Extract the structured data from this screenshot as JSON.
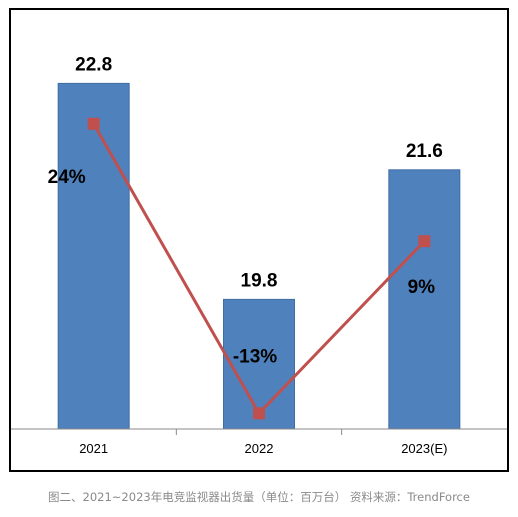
{
  "caption": "图二、2021~2023年电竞监视器出货量（单位：百万台） 资料来源：TrendForce",
  "chart_data": {
    "type": "bar",
    "categories": [
      "2021",
      "2022",
      "2023(E)"
    ],
    "series": [
      {
        "type": "bar",
        "values": [
          22.8,
          19.8,
          21.6
        ],
        "data_labels": [
          "22.8",
          "19.8",
          "21.6"
        ],
        "color": "#4F81BD"
      },
      {
        "type": "line",
        "values": [
          24,
          -13,
          9
        ],
        "unit": "%",
        "data_labels": [
          "24%",
          "-13%",
          "9%"
        ],
        "color": "#C0504D",
        "marker": "square"
      }
    ],
    "title": "",
    "xlabel": "",
    "ylabel": "",
    "ylim": [
      18,
      23
    ],
    "ylim_secondary": [
      -15,
      31
    ],
    "grid": false,
    "legend": "none"
  }
}
